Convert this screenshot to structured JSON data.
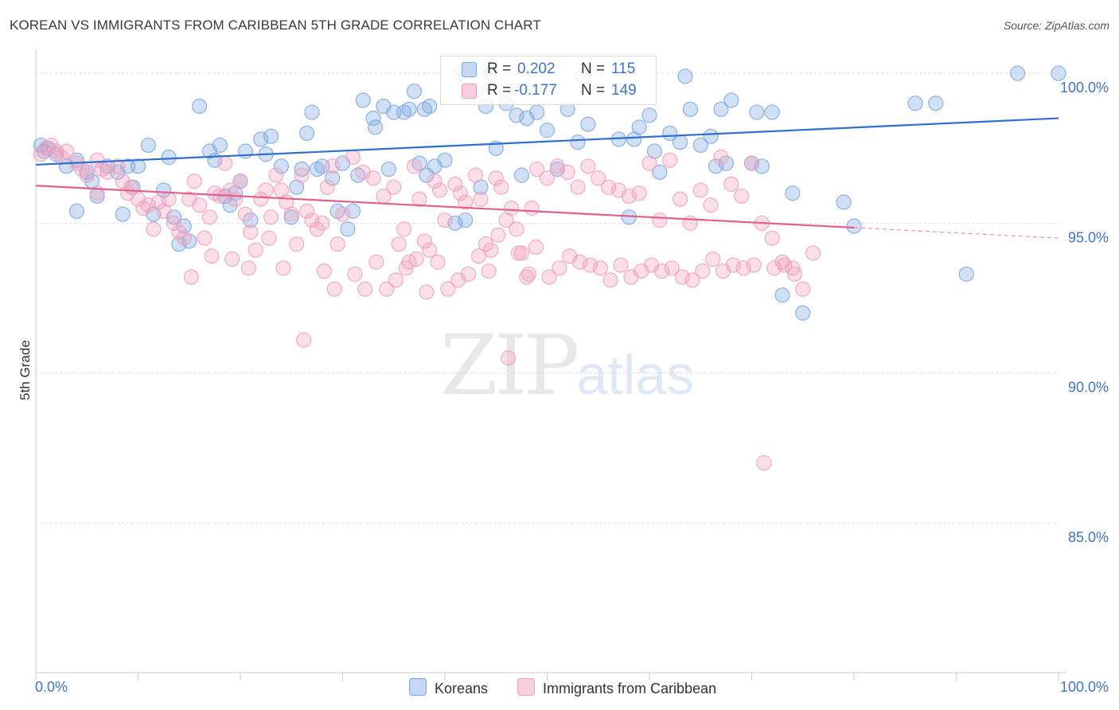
{
  "chart_data": {
    "type": "scatter",
    "title": "KOREAN VS IMMIGRANTS FROM CARIBBEAN 5TH GRADE CORRELATION CHART",
    "source": "Source: ZipAtlas.com",
    "ylabel": "5th Grade",
    "xlim": [
      0,
      100
    ],
    "ylim": [
      80,
      100.8
    ],
    "x_tick_labels": [
      "0.0%",
      "100.0%"
    ],
    "y_ticks": [
      {
        "value": 100,
        "label": "100.0%"
      },
      {
        "value": 95,
        "label": "95.0%"
      },
      {
        "value": 90,
        "label": "90.0%"
      },
      {
        "value": 85,
        "label": "85.0%"
      }
    ],
    "grid": true,
    "legend_position": "top-center",
    "series": [
      {
        "name": "Koreans",
        "color": "#7ba7e0",
        "line_color": "#2f6fcc",
        "R": "0.202",
        "N": "115",
        "trend": [
          [
            0,
            96.95
          ],
          [
            100,
            98.5
          ]
        ],
        "points": [
          [
            0.5,
            97.6
          ],
          [
            0.8,
            97.4
          ],
          [
            1.2,
            97.5
          ],
          [
            2,
            97.3
          ],
          [
            3,
            96.9
          ],
          [
            4,
            97.1
          ],
          [
            5,
            96.7
          ],
          [
            6,
            95.9
          ],
          [
            7,
            96.9
          ],
          [
            8,
            96.7
          ],
          [
            9,
            96.9
          ],
          [
            10,
            96.9
          ],
          [
            4,
            95.4
          ],
          [
            9.5,
            96.2
          ],
          [
            11,
            97.6
          ],
          [
            13,
            97.2
          ],
          [
            16,
            98.9
          ],
          [
            17,
            97.4
          ],
          [
            18,
            97.6
          ],
          [
            17.5,
            97.1
          ],
          [
            19,
            95.6
          ],
          [
            20,
            96.4
          ],
          [
            21,
            95.1
          ],
          [
            22,
            97.8
          ],
          [
            23,
            97.9
          ],
          [
            24,
            96.9
          ],
          [
            25,
            95.2
          ],
          [
            27,
            98.7
          ],
          [
            28,
            96.9
          ],
          [
            29,
            96.5
          ],
          [
            30,
            97.0
          ],
          [
            31,
            95.4
          ],
          [
            32,
            99.1
          ],
          [
            33,
            98.5
          ],
          [
            34,
            98.9
          ],
          [
            35,
            98.7
          ],
          [
            36,
            98.7
          ],
          [
            36.5,
            98.8
          ],
          [
            37,
            99.4
          ],
          [
            38,
            98.8
          ],
          [
            39,
            96.9
          ],
          [
            40,
            97.1
          ],
          [
            41,
            95.0
          ],
          [
            42,
            95.1
          ],
          [
            43,
            99.4
          ],
          [
            44,
            98.9
          ],
          [
            45,
            97.5
          ],
          [
            46,
            99.0
          ],
          [
            47,
            98.6
          ],
          [
            48,
            98.5
          ],
          [
            49,
            98.7
          ],
          [
            50,
            98.1
          ],
          [
            51,
            96.8
          ],
          [
            52,
            98.8
          ],
          [
            53,
            97.7
          ],
          [
            54,
            98.3
          ],
          [
            57,
            97.8
          ],
          [
            58,
            95.2
          ],
          [
            59,
            98.2
          ],
          [
            60,
            98.6
          ],
          [
            61,
            96.7
          ],
          [
            62,
            98.0
          ],
          [
            63,
            97.7
          ],
          [
            64,
            98.8
          ],
          [
            65,
            97.6
          ],
          [
            66,
            97.9
          ],
          [
            67,
            98.8
          ],
          [
            70,
            97.0
          ],
          [
            71,
            96.9
          ],
          [
            74,
            96.0
          ],
          [
            79,
            95.7
          ],
          [
            80,
            94.9
          ],
          [
            58.5,
            97.8
          ],
          [
            60.5,
            97.4
          ],
          [
            37.5,
            97.0
          ],
          [
            41.5,
            100
          ],
          [
            44.5,
            100
          ],
          [
            53.5,
            99.9
          ],
          [
            63.5,
            99.9
          ],
          [
            68,
            99.1
          ],
          [
            73,
            92.6
          ],
          [
            75,
            92.0
          ],
          [
            86,
            99.0
          ],
          [
            88,
            99.0
          ],
          [
            91,
            93.3
          ],
          [
            96,
            100
          ],
          [
            100,
            100
          ],
          [
            5.5,
            96.4
          ],
          [
            8.5,
            95.3
          ],
          [
            11.5,
            95.3
          ],
          [
            12.5,
            96.1
          ],
          [
            13.5,
            95.2
          ],
          [
            14.5,
            94.9
          ],
          [
            15,
            94.4
          ],
          [
            19.5,
            96.0
          ],
          [
            20.5,
            97.4
          ],
          [
            22.5,
            97.3
          ],
          [
            26,
            96.8
          ],
          [
            27.5,
            96.8
          ],
          [
            29.5,
            95.4
          ],
          [
            31.5,
            96.6
          ],
          [
            34.5,
            96.8
          ],
          [
            38.5,
            98.9
          ],
          [
            43.5,
            96.2
          ],
          [
            47.5,
            96.6
          ],
          [
            66.5,
            96.9
          ],
          [
            67.5,
            97.0
          ],
          [
            70.5,
            98.7
          ],
          [
            72,
            98.7
          ],
          [
            30.5,
            94.8
          ],
          [
            26.5,
            98.0
          ],
          [
            38.2,
            96.6
          ],
          [
            33.2,
            98.2
          ],
          [
            25.5,
            96.2
          ],
          [
            18.5,
            95.9
          ],
          [
            14,
            94.3
          ]
        ]
      },
      {
        "name": "Immigrants from Caribbean",
        "color": "#f0a0bc",
        "line_color": "#e06090",
        "R": "-0.177",
        "N": "149",
        "trend": [
          [
            0,
            96.25
          ],
          [
            80,
            94.85
          ]
        ],
        "trend_dashed": [
          [
            80,
            94.85
          ],
          [
            100,
            94.5
          ]
        ],
        "points": [
          [
            0.5,
            97.3
          ],
          [
            1,
            97.5
          ],
          [
            1.5,
            97.6
          ],
          [
            2,
            97.4
          ],
          [
            2.5,
            97.2
          ],
          [
            3,
            97.4
          ],
          [
            4,
            97.0
          ],
          [
            4.5,
            96.8
          ],
          [
            5,
            96.6
          ],
          [
            6,
            97.1
          ],
          [
            6.5,
            96.8
          ],
          [
            7,
            96.7
          ],
          [
            8,
            96.9
          ],
          [
            8.5,
            96.4
          ],
          [
            9,
            96.0
          ],
          [
            10,
            95.8
          ],
          [
            10.5,
            95.5
          ],
          [
            11,
            95.6
          ],
          [
            11.5,
            94.8
          ],
          [
            12,
            95.7
          ],
          [
            12.5,
            95.4
          ],
          [
            13,
            95.8
          ],
          [
            13.5,
            95.0
          ],
          [
            14,
            94.7
          ],
          [
            14.5,
            94.5
          ],
          [
            15,
            95.8
          ],
          [
            15.5,
            96.4
          ],
          [
            16,
            95.6
          ],
          [
            16.5,
            94.5
          ],
          [
            17,
            95.2
          ],
          [
            17.5,
            96.0
          ],
          [
            18,
            95.9
          ],
          [
            18.5,
            97.0
          ],
          [
            19,
            96.1
          ],
          [
            19.5,
            95.8
          ],
          [
            20,
            96.4
          ],
          [
            20.5,
            95.3
          ],
          [
            21,
            94.7
          ],
          [
            21.5,
            94.1
          ],
          [
            22,
            95.8
          ],
          [
            22.5,
            96.1
          ],
          [
            23,
            95.2
          ],
          [
            23.5,
            96.6
          ],
          [
            24,
            96.1
          ],
          [
            24.5,
            95.7
          ],
          [
            25,
            95.3
          ],
          [
            25.5,
            94.3
          ],
          [
            26,
            96.6
          ],
          [
            26.5,
            95.4
          ],
          [
            27,
            95.1
          ],
          [
            27.5,
            94.8
          ],
          [
            28,
            95.0
          ],
          [
            28.5,
            96.2
          ],
          [
            29,
            96.9
          ],
          [
            29.5,
            94.3
          ],
          [
            30,
            95.3
          ],
          [
            31,
            97.2
          ],
          [
            32,
            96.7
          ],
          [
            33,
            96.5
          ],
          [
            34,
            95.9
          ],
          [
            35,
            96.2
          ],
          [
            35.5,
            94.3
          ],
          [
            36,
            94.8
          ],
          [
            36.5,
            93.7
          ],
          [
            37,
            96.9
          ],
          [
            37.5,
            95.8
          ],
          [
            38,
            94.4
          ],
          [
            38.5,
            94.1
          ],
          [
            39,
            96.4
          ],
          [
            39.5,
            96.1
          ],
          [
            40,
            95.1
          ],
          [
            41,
            96.3
          ],
          [
            41.5,
            96.0
          ],
          [
            42,
            95.7
          ],
          [
            43,
            96.6
          ],
          [
            43.5,
            95.8
          ],
          [
            44,
            94.3
          ],
          [
            44.5,
            94.1
          ],
          [
            45,
            96.5
          ],
          [
            45.5,
            96.2
          ],
          [
            46,
            95.1
          ],
          [
            46.5,
            95.5
          ],
          [
            47,
            94.8
          ],
          [
            47.5,
            94.0
          ],
          [
            48,
            93.2
          ],
          [
            48.5,
            95.5
          ],
          [
            49,
            96.8
          ],
          [
            50,
            96.5
          ],
          [
            51,
            96.9
          ],
          [
            52,
            96.7
          ],
          [
            53,
            96.2
          ],
          [
            54,
            96.9
          ],
          [
            55,
            96.5
          ],
          [
            56,
            96.2
          ],
          [
            57,
            96.1
          ],
          [
            58,
            95.9
          ],
          [
            59,
            96.0
          ],
          [
            60,
            97.0
          ],
          [
            61,
            95.1
          ],
          [
            62,
            97.1
          ],
          [
            63,
            95.8
          ],
          [
            64,
            95.0
          ],
          [
            65,
            96.1
          ],
          [
            66,
            95.6
          ],
          [
            67,
            97.2
          ],
          [
            68,
            96.3
          ],
          [
            69,
            95.9
          ],
          [
            70,
            97.0
          ],
          [
            71,
            95.0
          ],
          [
            72,
            94.5
          ],
          [
            73,
            93.7
          ],
          [
            74,
            93.5
          ],
          [
            75,
            92.8
          ],
          [
            76,
            94.0
          ],
          [
            6,
            96.0
          ],
          [
            9.3,
            96.2
          ],
          [
            15.2,
            93.2
          ],
          [
            17.2,
            93.9
          ],
          [
            19.2,
            93.8
          ],
          [
            20.8,
            93.5
          ],
          [
            22.8,
            94.5
          ],
          [
            24.2,
            93.5
          ],
          [
            26.2,
            91.1
          ],
          [
            28.2,
            93.4
          ],
          [
            29.2,
            92.8
          ],
          [
            31.2,
            93.3
          ],
          [
            32.2,
            92.8
          ],
          [
            33.3,
            93.7
          ],
          [
            34.3,
            92.8
          ],
          [
            35.2,
            93.1
          ],
          [
            36.2,
            93.5
          ],
          [
            37.2,
            93.8
          ],
          [
            38.2,
            92.7
          ],
          [
            39.3,
            93.7
          ],
          [
            40.3,
            92.8
          ],
          [
            41.3,
            93.1
          ],
          [
            42.3,
            93.3
          ],
          [
            43.3,
            93.9
          ],
          [
            44.3,
            93.4
          ],
          [
            45.2,
            94.6
          ],
          [
            46.2,
            90.5
          ],
          [
            47.2,
            94.0
          ],
          [
            48.2,
            93.3
          ],
          [
            48.9,
            94.2
          ],
          [
            50.2,
            93.2
          ],
          [
            51.2,
            93.5
          ],
          [
            52.2,
            93.9
          ],
          [
            53.2,
            93.7
          ],
          [
            54.2,
            93.6
          ],
          [
            55.2,
            93.5
          ],
          [
            56.2,
            93.1
          ],
          [
            57.2,
            93.6
          ],
          [
            58.2,
            93.2
          ],
          [
            59.2,
            93.4
          ],
          [
            60.2,
            93.6
          ],
          [
            61.2,
            93.4
          ],
          [
            62.2,
            93.5
          ],
          [
            63.2,
            93.2
          ],
          [
            64.2,
            93.1
          ],
          [
            65.2,
            93.4
          ],
          [
            66.2,
            93.8
          ],
          [
            67.2,
            93.4
          ],
          [
            68.2,
            93.6
          ],
          [
            69.2,
            93.5
          ],
          [
            70.2,
            93.6
          ],
          [
            71.2,
            87.0
          ],
          [
            72.2,
            93.5
          ],
          [
            73.2,
            93.6
          ],
          [
            74.2,
            93.3
          ]
        ]
      }
    ]
  },
  "legend": {
    "r_label": "R =",
    "n_label": "N ="
  },
  "watermark": {
    "zip": "ZIP",
    "atlas": "atlas"
  },
  "colors": {
    "blue": "#7ba7e0",
    "pink": "#f0a0bc",
    "tick_blue": "#3f74c8"
  }
}
